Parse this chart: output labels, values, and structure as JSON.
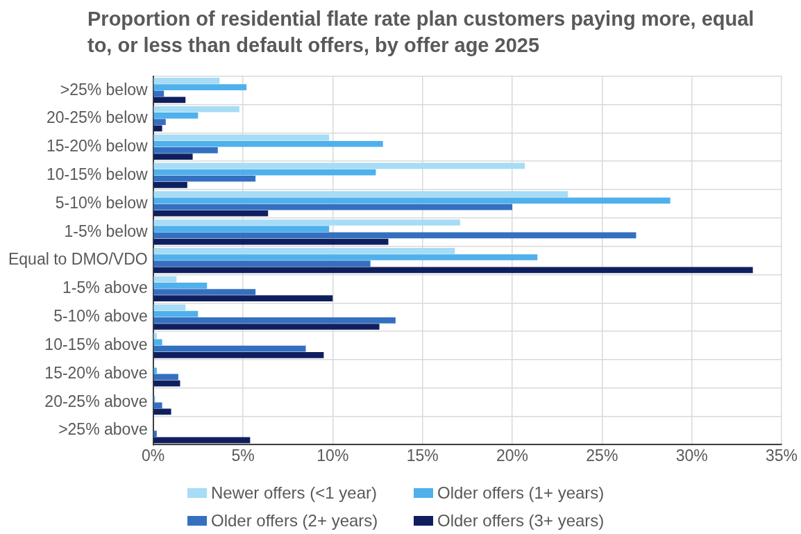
{
  "chart_data": {
    "type": "bar",
    "orientation": "horizontal",
    "title": "Proportion of residential flate rate plan customers paying more, equal to, or less than default offers, by offer age 2025",
    "categories": [
      ">25% below",
      "20-25% below",
      "15-20% below",
      "10-15% below",
      "5-10% below",
      "1-5% below",
      "Equal to DMO/VDO",
      "1-5% above",
      "5-10% above",
      "10-15% above",
      "15-20% above",
      "20-25% above",
      ">25% above"
    ],
    "series": [
      {
        "name": "Newer offers (<1 year)",
        "color": "#a6dcf5",
        "values": [
          3.7,
          4.8,
          9.8,
          20.7,
          23.1,
          17.1,
          16.8,
          1.3,
          1.8,
          0.2,
          0,
          0,
          0
        ]
      },
      {
        "name": "Older offers (1+ years)",
        "color": "#4fb0ec",
        "values": [
          5.2,
          2.5,
          12.8,
          12.4,
          28.8,
          9.8,
          21.4,
          3.0,
          2.5,
          0.5,
          0.2,
          0.1,
          0
        ]
      },
      {
        "name": "Older offers (2+ years)",
        "color": "#3470bf",
        "values": [
          0.6,
          0.7,
          3.6,
          5.7,
          20.0,
          26.9,
          12.1,
          5.7,
          13.5,
          8.5,
          1.4,
          0.5,
          0.2
        ]
      },
      {
        "name": "Older offers (3+ years)",
        "color": "#0f1f5e",
        "values": [
          1.8,
          0.5,
          2.2,
          1.9,
          6.4,
          13.1,
          33.4,
          10.0,
          12.6,
          9.5,
          1.5,
          1.0,
          5.4
        ]
      }
    ],
    "xlim": [
      0,
      35
    ],
    "xticks": [
      {
        "value": 0,
        "label": "0%"
      },
      {
        "value": 5,
        "label": "5%"
      },
      {
        "value": 10,
        "label": "10%"
      },
      {
        "value": 15,
        "label": "15%"
      },
      {
        "value": 20,
        "label": "20%"
      },
      {
        "value": 25,
        "label": "25%"
      },
      {
        "value": 30,
        "label": "30%"
      },
      {
        "value": 35,
        "label": "35%"
      }
    ],
    "grid": true,
    "legend": "bottom"
  }
}
